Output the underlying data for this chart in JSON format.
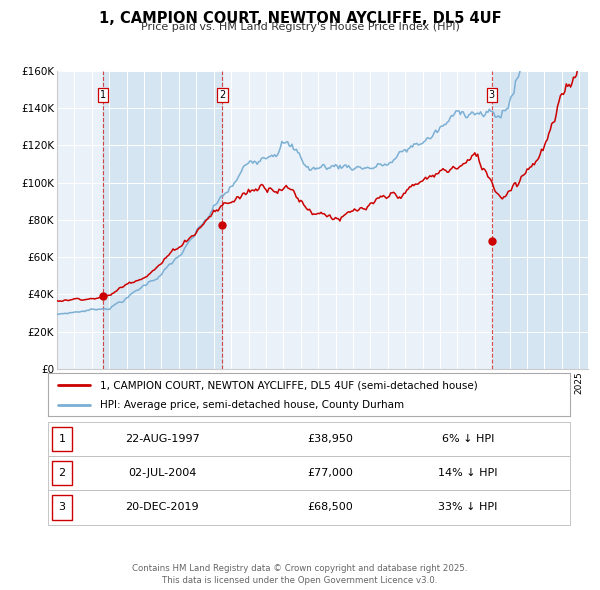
{
  "title": "1, CAMPION COURT, NEWTON AYCLIFFE, DL5 4UF",
  "subtitle": "Price paid vs. HM Land Registry's House Price Index (HPI)",
  "hpi_color": "#7bafd4",
  "price_color": "#cc0000",
  "plot_bg": "#eaf1f8",
  "shaded_bg": "#d5e5f2",
  "transaction_dates": [
    1997.644,
    2004.503,
    2019.972
  ],
  "transaction_prices": [
    38950,
    77000,
    68500
  ],
  "transaction_labels": [
    "1",
    "2",
    "3"
  ],
  "legend_entries": [
    "1, CAMPION COURT, NEWTON AYCLIFFE, DL5 4UF (semi-detached house)",
    "HPI: Average price, semi-detached house, County Durham"
  ],
  "table_data": [
    [
      "1",
      "22-AUG-1997",
      "£38,950",
      "6% ↓ HPI"
    ],
    [
      "2",
      "02-JUL-2004",
      "£77,000",
      "14% ↓ HPI"
    ],
    [
      "3",
      "20-DEC-2019",
      "£68,500",
      "33% ↓ HPI"
    ]
  ],
  "footnote": "Contains HM Land Registry data © Crown copyright and database right 2025.\nThis data is licensed under the Open Government Licence v3.0.",
  "ylim": [
    0,
    160000
  ],
  "yticks": [
    0,
    20000,
    40000,
    60000,
    80000,
    100000,
    120000,
    140000,
    160000
  ],
  "ytick_labels": [
    "£0",
    "£20K",
    "£40K",
    "£60K",
    "£80K",
    "£100K",
    "£120K",
    "£140K",
    "£160K"
  ],
  "xmin": 1995,
  "xmax": 2025.5
}
